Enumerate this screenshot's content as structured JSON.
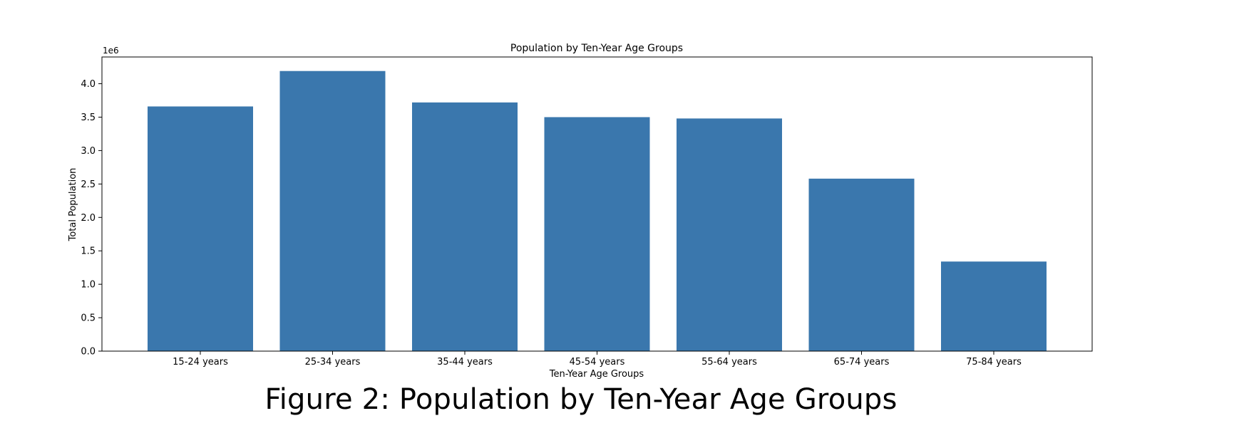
{
  "chart_data": {
    "type": "bar",
    "title": "Population by Ten-Year Age Groups",
    "xlabel": "Ten-Year Age Groups",
    "ylabel": "Total Population",
    "offset_label": "1e6",
    "categories": [
      "15-24 years",
      "25-34 years",
      "35-44 years",
      "45-54 years",
      "55-64 years",
      "65-74 years",
      "75-84 years"
    ],
    "values": [
      3660000,
      4190000,
      3720000,
      3500000,
      3480000,
      2580000,
      1340000
    ],
    "ylim": [
      0,
      4400000
    ],
    "yticks": [
      0,
      500000,
      1000000,
      1500000,
      2000000,
      2500000,
      3000000,
      3500000,
      4000000
    ],
    "ytick_labels": [
      "0.0",
      "0.5",
      "1.0",
      "1.5",
      "2.0",
      "2.5",
      "3.0",
      "3.5",
      "4.0"
    ],
    "bar_color": "#3a77ad",
    "grid": false,
    "legend": false
  },
  "caption": "Figure 2: Population by Ten-Year Age Groups"
}
